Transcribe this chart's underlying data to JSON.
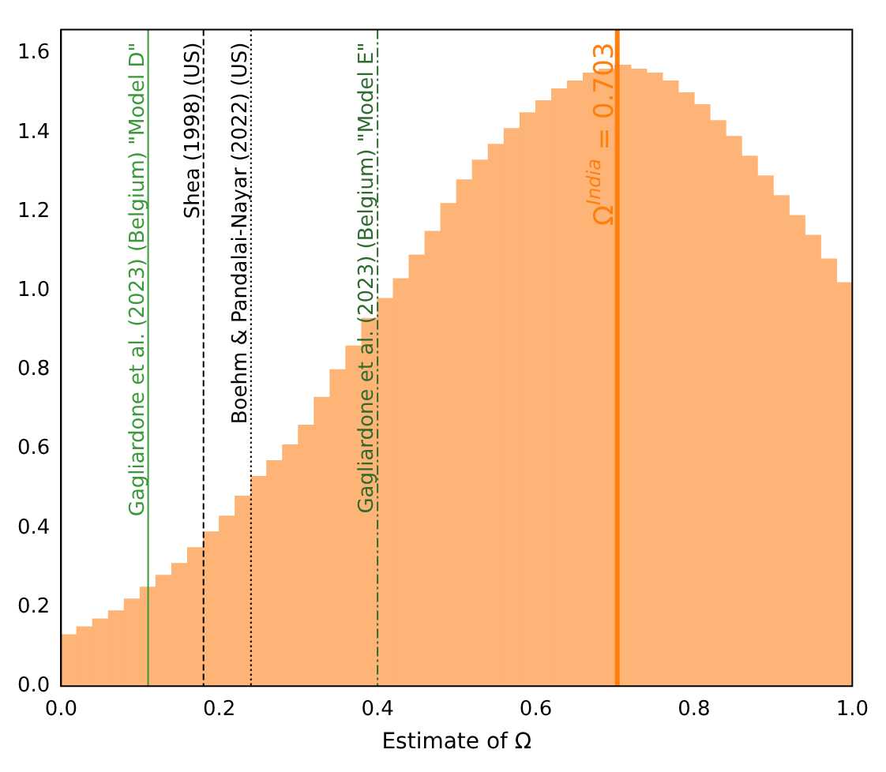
{
  "chart_data": {
    "type": "histogram",
    "xlabel": "Estimate of Ω",
    "color": "#fdb476",
    "bins": [
      0,
      0.02,
      0.04,
      0.06,
      0.08,
      0.1,
      0.12,
      0.14,
      0.16,
      0.18,
      0.2,
      0.22,
      0.24,
      0.26,
      0.28,
      0.3,
      0.32,
      0.34,
      0.36,
      0.38,
      0.4,
      0.42,
      0.44,
      0.46,
      0.48,
      0.5,
      0.52,
      0.54,
      0.56,
      0.58,
      0.6,
      0.62,
      0.64,
      0.66,
      0.68,
      0.7,
      0.72,
      0.74,
      0.76,
      0.78,
      0.8,
      0.82,
      0.84,
      0.86,
      0.88,
      0.9,
      0.92,
      0.94,
      0.96,
      0.98,
      1.0
    ],
    "values": [
      0.13,
      0.15,
      0.17,
      0.19,
      0.22,
      0.25,
      0.28,
      0.31,
      0.35,
      0.39,
      0.43,
      0.48,
      0.53,
      0.57,
      0.61,
      0.66,
      0.73,
      0.8,
      0.86,
      0.93,
      0.98,
      1.03,
      1.09,
      1.15,
      1.22,
      1.28,
      1.33,
      1.37,
      1.41,
      1.45,
      1.48,
      1.51,
      1.53,
      1.55,
      1.56,
      1.57,
      1.56,
      1.55,
      1.53,
      1.5,
      1.47,
      1.43,
      1.39,
      1.34,
      1.29,
      1.24,
      1.19,
      1.14,
      1.08,
      1.02
    ],
    "xlim": [
      0,
      1
    ],
    "xticks": [
      {
        "value": 0,
        "label": "0.0"
      },
      0.2,
      0.4,
      0.6,
      0.8,
      {
        "value": 1,
        "label": "1.0"
      }
    ],
    "ylim": [
      0,
      1.66
    ],
    "yticks": [
      {
        "value": 0,
        "label": "0.0"
      },
      0.2,
      0.4,
      0.6,
      0.8,
      {
        "value": 1,
        "label": "1.0"
      },
      1.2,
      1.4,
      1.6
    ],
    "grid": false,
    "ref_lines": [
      {
        "axis": "x",
        "value": 0.11,
        "label": "Gagliardone et al. (2023) (Belgium) \"Model D\"",
        "color": "#3a9a3a",
        "line_style": "solid"
      },
      {
        "axis": "x",
        "value": 0.18,
        "label": "Shea (1998) (US)",
        "color": "#000000",
        "line_style": "dashed"
      },
      {
        "axis": "x",
        "value": 0.24,
        "label": "Boehm & Pandalai-Nayar (2022) (US)",
        "color": "#000000",
        "line_style": "dotted"
      },
      {
        "axis": "x",
        "value": 0.4,
        "label": "Gagliardone et al. (2023) (Belgium) \"Model E\"",
        "color": "#2e6b2e",
        "line_style": "dashdot"
      },
      {
        "axis": "x",
        "value": 0.703,
        "label": "Ω$^{India}$ = 0.703",
        "color": "#ff7f0e",
        "line_style": "solid"
      }
    ]
  }
}
